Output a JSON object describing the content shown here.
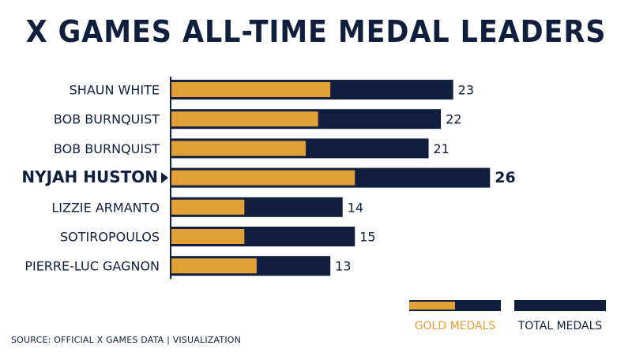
{
  "colors": {
    "gold": "#e3a037",
    "navy": "#0f1f3d",
    "text": "#0f1f3d",
    "axis": "#0f1f3d"
  },
  "chart_data": {
    "type": "bar",
    "title": "X GAMES ALL-TIME MEDAL LEADERS",
    "categories": [
      "SHAUN WHITE",
      "BOB BURNQUIST",
      "BOB BURNQUIST",
      "NYJAH HUSTON",
      "LIZZIE ARMANTO",
      "SOTIROPOULOS",
      "PIERRE-LUC GAGNON"
    ],
    "highlight": "NYJAH HUSTON",
    "series": [
      {
        "name": "GOLD MEDALS",
        "values": [
          13,
          12,
          11,
          15,
          6,
          6,
          7
        ]
      },
      {
        "name": "TOTAL MEDALS",
        "values": [
          23,
          22,
          21,
          26,
          14,
          15,
          13
        ]
      }
    ],
    "legend_position": "bottom-right",
    "grid": false
  },
  "source": "SOURCE: OFFICIAL X GAMES DATA | VISUALIZATION"
}
